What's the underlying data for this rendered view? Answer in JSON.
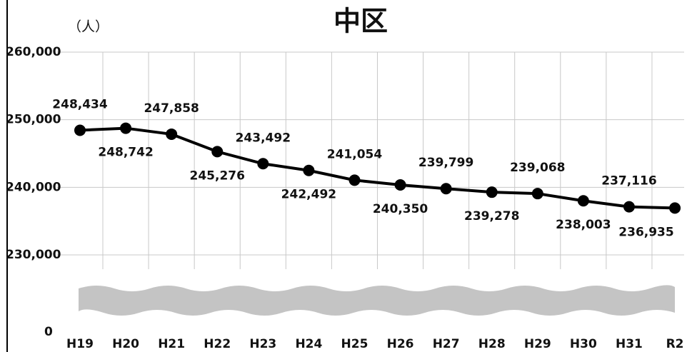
{
  "chart_data": {
    "type": "line",
    "title": "中区",
    "y_unit_label": "（人）",
    "categories": [
      "H19",
      "H20",
      "H21",
      "H22",
      "H23",
      "H24",
      "H25",
      "H26",
      "H27",
      "H28",
      "H29",
      "H30",
      "H31",
      "R2"
    ],
    "series": [
      {
        "name": "中区",
        "color": "#000000",
        "values": [
          248434,
          248742,
          247858,
          245276,
          243492,
          242492,
          241054,
          240350,
          239799,
          239278,
          239068,
          238003,
          237116,
          236935
        ],
        "value_labels": [
          "248,434",
          "248,742",
          "247,858",
          "245,276",
          "243,492",
          "242,492",
          "241,054",
          "240,350",
          "239,799",
          "239,278",
          "239,068",
          "238,003",
          "237,116",
          "236,935"
        ]
      }
    ],
    "ylim": [
      0,
      260000
    ],
    "y_break": [
      0,
      230000
    ],
    "yticks": [
      0,
      {
        "value": 230000,
        "label": "230,000"
      },
      {
        "value": 240000,
        "label": "240,000"
      },
      {
        "value": 250000,
        "label": "250,000"
      },
      {
        "value": 260000,
        "label": "260,000"
      }
    ],
    "grid": true
  }
}
